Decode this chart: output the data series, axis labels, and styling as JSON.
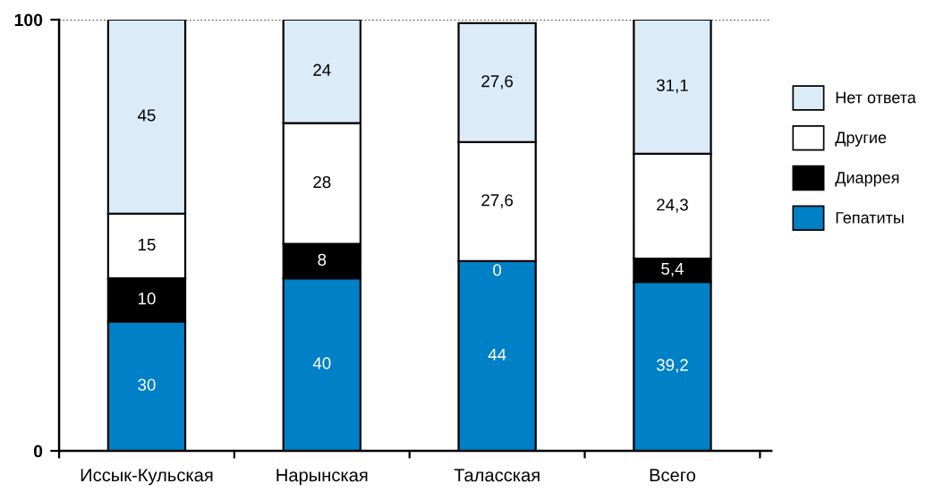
{
  "chart_data": {
    "type": "bar",
    "stacked": true,
    "categories": [
      "Иссык-Кульская",
      "Нарынская",
      "Таласская",
      "Всего"
    ],
    "series": [
      {
        "name": "Гепатиты",
        "color": "#0080c6",
        "values": [
          30,
          40,
          44,
          39.2
        ],
        "value_labels": [
          "30",
          "40",
          "44",
          "39,2"
        ]
      },
      {
        "name": "Диаррея",
        "color": "#000000",
        "values": [
          10,
          8,
          0,
          5.4
        ],
        "value_labels": [
          "10",
          "8",
          "0",
          "5,4"
        ]
      },
      {
        "name": "Другие",
        "color": "#ffffff",
        "values": [
          15,
          28,
          27.6,
          24.3
        ],
        "value_labels": [
          "15",
          "28",
          "27,6",
          "24,3"
        ]
      },
      {
        "name": "Нет ответа",
        "color": "#dbebf7",
        "values": [
          45,
          24,
          27.6,
          31.1
        ],
        "value_labels": [
          "45",
          "24",
          "27,6",
          "31,1"
        ]
      }
    ],
    "ylim": [
      0,
      100
    ],
    "yticks": [
      0,
      100
    ],
    "ref_lines": [
      {
        "axis": "y",
        "value": 100,
        "color": "#000000",
        "line_style": "dotted"
      }
    ],
    "legend": "right"
  }
}
